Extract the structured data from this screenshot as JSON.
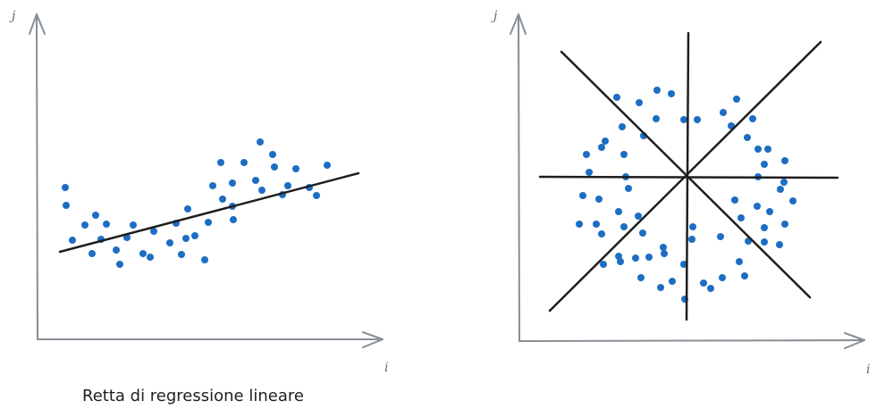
{
  "left_plot": {
    "x_axis_label": "i",
    "y_axis_label": "j",
    "caption": "Retta di regressione lineare"
  },
  "right_plot": {
    "x_axis_label": "i",
    "y_axis_label": "j"
  },
  "colors": {
    "axis": "#868e96",
    "point": "#1c6ec3",
    "line": "#1e1e1e"
  }
}
